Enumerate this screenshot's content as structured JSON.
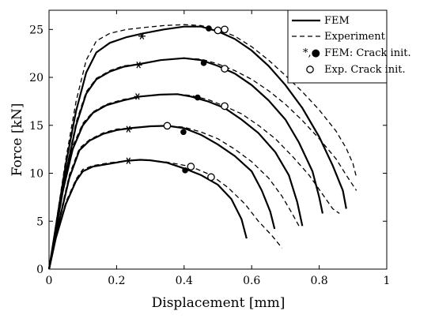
{
  "chart_data": {
    "type": "line",
    "xlabel": "Displacement [mm]",
    "ylabel": "Force [kN]",
    "xlim": [
      0,
      1
    ],
    "ylim": [
      0,
      27
    ],
    "xticks": [
      "0",
      "0.2",
      "0.4",
      "0.6",
      "0.8",
      "1"
    ],
    "yticks": [
      "0",
      "5",
      "10",
      "15",
      "20",
      "25"
    ],
    "grid": false,
    "legend_position": "top-right",
    "legend": [
      {
        "marker_label": "",
        "label": "FEM",
        "style": "solid"
      },
      {
        "marker_label": "",
        "label": "Experiment",
        "style": "dashed"
      },
      {
        "marker_label": "*,●",
        "label": "FEM: Crack init.",
        "style": "markers"
      },
      {
        "marker_label": "○",
        "label": "Exp. Crack init.",
        "style": "marker"
      }
    ],
    "series": [
      {
        "fem": [
          [
            0,
            0
          ],
          [
            0.02,
            3.2
          ],
          [
            0.05,
            6.8
          ],
          [
            0.08,
            9.2
          ],
          [
            0.1,
            10.2
          ],
          [
            0.13,
            10.7
          ],
          [
            0.18,
            11.0
          ],
          [
            0.23,
            11.3
          ],
          [
            0.27,
            11.4
          ],
          [
            0.3,
            11.35
          ],
          [
            0.35,
            11.1
          ],
          [
            0.4,
            10.5
          ],
          [
            0.45,
            9.8
          ],
          [
            0.5,
            8.8
          ],
          [
            0.54,
            7.3
          ],
          [
            0.57,
            5.2
          ],
          [
            0.585,
            3.2
          ]
        ],
        "exp": [
          [
            0,
            0
          ],
          [
            0.02,
            3.3
          ],
          [
            0.05,
            7.0
          ],
          [
            0.08,
            9.4
          ],
          [
            0.1,
            10.4
          ],
          [
            0.13,
            10.8
          ],
          [
            0.18,
            11.1
          ],
          [
            0.23,
            11.3
          ],
          [
            0.27,
            11.4
          ],
          [
            0.3,
            11.35
          ],
          [
            0.35,
            11.15
          ],
          [
            0.42,
            10.7
          ],
          [
            0.48,
            9.8
          ],
          [
            0.53,
            8.5
          ],
          [
            0.58,
            6.8
          ],
          [
            0.62,
            5.0
          ],
          [
            0.66,
            3.5
          ],
          [
            0.69,
            2.2
          ]
        ],
        "fem_crack_star": [
          0.235,
          11.3
        ],
        "fem_crack_dot": [
          0.403,
          10.3
        ],
        "exp_crack": [
          [
            0.42,
            10.7
          ],
          [
            0.48,
            9.6
          ]
        ]
      },
      {
        "fem": [
          [
            0,
            0
          ],
          [
            0.03,
            5.0
          ],
          [
            0.06,
            9.5
          ],
          [
            0.09,
            12.4
          ],
          [
            0.12,
            13.4
          ],
          [
            0.16,
            14.1
          ],
          [
            0.2,
            14.5
          ],
          [
            0.24,
            14.7
          ],
          [
            0.3,
            14.9
          ],
          [
            0.35,
            14.95
          ],
          [
            0.4,
            14.7
          ],
          [
            0.45,
            14.0
          ],
          [
            0.5,
            13.0
          ],
          [
            0.55,
            11.8
          ],
          [
            0.6,
            10.2
          ],
          [
            0.63,
            8.2
          ],
          [
            0.655,
            6.0
          ],
          [
            0.668,
            4.2
          ]
        ],
        "exp": [
          [
            0,
            0
          ],
          [
            0.03,
            5.2
          ],
          [
            0.06,
            9.8
          ],
          [
            0.09,
            12.6
          ],
          [
            0.12,
            13.5
          ],
          [
            0.16,
            14.2
          ],
          [
            0.2,
            14.6
          ],
          [
            0.24,
            14.7
          ],
          [
            0.3,
            14.9
          ],
          [
            0.35,
            14.95
          ],
          [
            0.4,
            14.8
          ],
          [
            0.45,
            14.3
          ],
          [
            0.5,
            13.6
          ],
          [
            0.55,
            12.5
          ],
          [
            0.6,
            11.2
          ],
          [
            0.65,
            9.5
          ],
          [
            0.69,
            7.6
          ],
          [
            0.72,
            5.8
          ],
          [
            0.74,
            4.5
          ]
        ],
        "fem_crack_star": [
          0.235,
          14.6
        ],
        "fem_crack_dot": [
          0.398,
          14.3
        ],
        "exp_crack": [
          [
            0.35,
            14.95
          ]
        ]
      },
      {
        "fem": [
          [
            0,
            0
          ],
          [
            0.04,
            8.0
          ],
          [
            0.07,
            12.5
          ],
          [
            0.1,
            15.0
          ],
          [
            0.13,
            16.3
          ],
          [
            0.17,
            17.1
          ],
          [
            0.22,
            17.6
          ],
          [
            0.27,
            18.0
          ],
          [
            0.33,
            18.2
          ],
          [
            0.38,
            18.25
          ],
          [
            0.42,
            18.0
          ],
          [
            0.47,
            17.5
          ],
          [
            0.52,
            16.8
          ],
          [
            0.57,
            15.6
          ],
          [
            0.62,
            14.2
          ],
          [
            0.67,
            12.2
          ],
          [
            0.71,
            9.8
          ],
          [
            0.735,
            7.0
          ],
          [
            0.75,
            4.5
          ]
        ],
        "exp": [
          [
            0,
            0
          ],
          [
            0.04,
            8.2
          ],
          [
            0.07,
            12.8
          ],
          [
            0.1,
            15.2
          ],
          [
            0.13,
            16.4
          ],
          [
            0.17,
            17.2
          ],
          [
            0.22,
            17.7
          ],
          [
            0.27,
            18.0
          ],
          [
            0.33,
            18.2
          ],
          [
            0.38,
            18.25
          ],
          [
            0.42,
            18.1
          ],
          [
            0.47,
            17.7
          ],
          [
            0.52,
            17.0
          ],
          [
            0.57,
            16.2
          ],
          [
            0.62,
            15.0
          ],
          [
            0.67,
            13.6
          ],
          [
            0.72,
            11.8
          ],
          [
            0.77,
            9.8
          ],
          [
            0.81,
            7.8
          ],
          [
            0.84,
            6.3
          ],
          [
            0.86,
            5.8
          ]
        ],
        "fem_crack_star": [
          0.262,
          18.0
        ],
        "fem_crack_dot": [
          0.44,
          17.9
        ],
        "exp_crack": [
          [
            0.52,
            17.0
          ]
        ]
      },
      {
        "fem": [
          [
            0,
            0
          ],
          [
            0.05,
            10.0
          ],
          [
            0.08,
            15.0
          ],
          [
            0.11,
            18.3
          ],
          [
            0.14,
            19.8
          ],
          [
            0.18,
            20.6
          ],
          [
            0.22,
            21.1
          ],
          [
            0.27,
            21.4
          ],
          [
            0.33,
            21.8
          ],
          [
            0.4,
            22.0
          ],
          [
            0.45,
            21.8
          ],
          [
            0.5,
            21.2
          ],
          [
            0.55,
            20.4
          ],
          [
            0.6,
            19.2
          ],
          [
            0.65,
            17.6
          ],
          [
            0.7,
            15.6
          ],
          [
            0.74,
            13.2
          ],
          [
            0.78,
            10.2
          ],
          [
            0.8,
            7.5
          ],
          [
            0.81,
            5.8
          ]
        ],
        "exp": [
          [
            0,
            0
          ],
          [
            0.05,
            10.2
          ],
          [
            0.08,
            15.3
          ],
          [
            0.11,
            18.5
          ],
          [
            0.14,
            19.9
          ],
          [
            0.18,
            20.7
          ],
          [
            0.22,
            21.2
          ],
          [
            0.27,
            21.4
          ],
          [
            0.33,
            21.8
          ],
          [
            0.4,
            22.0
          ],
          [
            0.45,
            21.9
          ],
          [
            0.5,
            21.4
          ],
          [
            0.55,
            20.7
          ],
          [
            0.6,
            19.8
          ],
          [
            0.65,
            18.6
          ],
          [
            0.7,
            17.2
          ],
          [
            0.75,
            15.5
          ],
          [
            0.8,
            13.6
          ],
          [
            0.85,
            11.5
          ],
          [
            0.88,
            9.8
          ],
          [
            0.91,
            8.2
          ]
        ],
        "fem_crack_star": [
          0.265,
          21.3
        ],
        "fem_crack_dot": [
          0.458,
          21.5
        ],
        "exp_crack": [
          [
            0.52,
            20.9
          ]
        ]
      },
      {
        "fem": [
          [
            0,
            0
          ],
          [
            0.05,
            11.0
          ],
          [
            0.08,
            16.5
          ],
          [
            0.11,
            20.5
          ],
          [
            0.14,
            22.6
          ],
          [
            0.18,
            23.6
          ],
          [
            0.23,
            24.2
          ],
          [
            0.28,
            24.6
          ],
          [
            0.34,
            25.0
          ],
          [
            0.4,
            25.3
          ],
          [
            0.45,
            25.3
          ],
          [
            0.5,
            24.8
          ],
          [
            0.55,
            24.0
          ],
          [
            0.6,
            22.8
          ],
          [
            0.65,
            21.2
          ],
          [
            0.7,
            19.2
          ],
          [
            0.75,
            16.8
          ],
          [
            0.8,
            13.8
          ],
          [
            0.84,
            10.8
          ],
          [
            0.87,
            8.2
          ],
          [
            0.88,
            6.3
          ]
        ],
        "exp": [
          [
            0,
            0
          ],
          [
            0.05,
            11.5
          ],
          [
            0.08,
            17.5
          ],
          [
            0.11,
            21.8
          ],
          [
            0.14,
            23.8
          ],
          [
            0.18,
            24.6
          ],
          [
            0.23,
            25.0
          ],
          [
            0.28,
            25.2
          ],
          [
            0.34,
            25.4
          ],
          [
            0.4,
            25.5
          ],
          [
            0.45,
            25.4
          ],
          [
            0.5,
            25.0
          ],
          [
            0.55,
            24.3
          ],
          [
            0.6,
            23.2
          ],
          [
            0.65,
            21.8
          ],
          [
            0.7,
            20.2
          ],
          [
            0.75,
            18.5
          ],
          [
            0.8,
            16.6
          ],
          [
            0.85,
            14.4
          ],
          [
            0.88,
            12.6
          ],
          [
            0.9,
            11.0
          ],
          [
            0.91,
            9.6
          ]
        ],
        "fem_crack_star": [
          0.275,
          24.3
        ],
        "fem_crack_dot": [
          0.473,
          25.1
        ],
        "exp_crack": [
          [
            0.5,
            24.9
          ],
          [
            0.52,
            25.0
          ]
        ]
      }
    ]
  }
}
